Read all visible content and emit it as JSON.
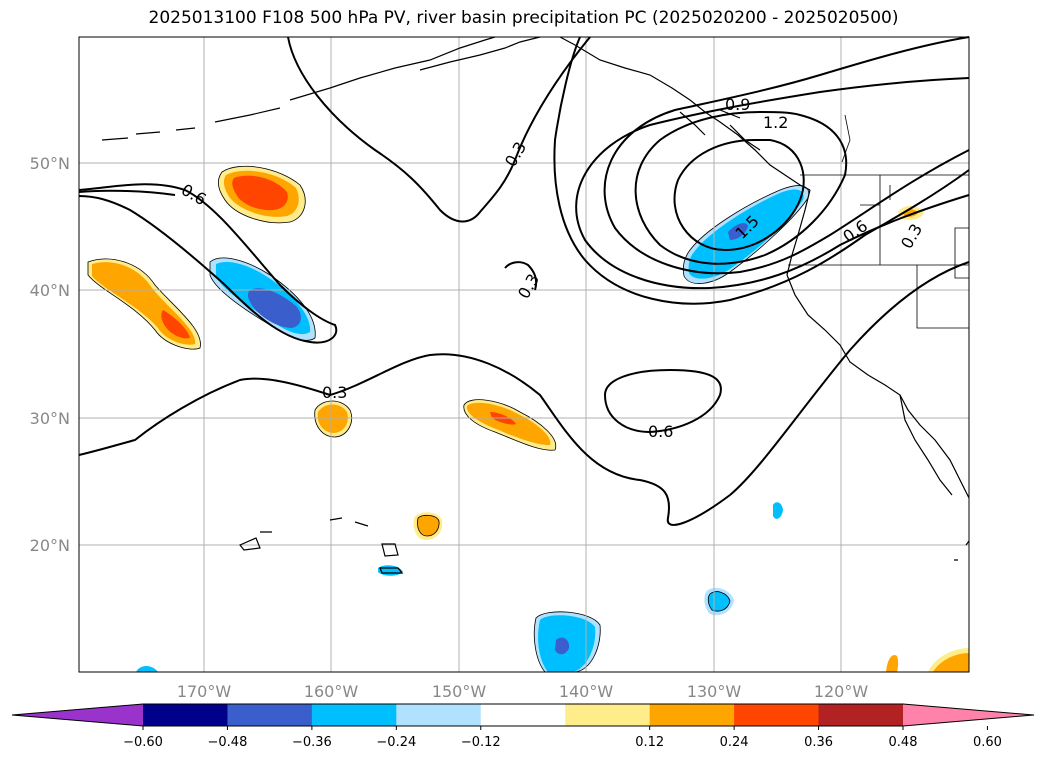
{
  "title": "2025013100 F108 500 hPa PV, river basin precipitation PC (2025020200 - 2025020500)",
  "map": {
    "lat_ticks": [
      {
        "lat": 50,
        "label": "50°N"
      },
      {
        "lat": 40,
        "label": "40°N"
      },
      {
        "lat": 30,
        "label": "30°N"
      },
      {
        "lat": 20,
        "label": "20°N"
      }
    ],
    "lon_ticks": [
      {
        "lon": -170,
        "label": "170°W"
      },
      {
        "lon": -160,
        "label": "160°W"
      },
      {
        "lon": -150,
        "label": "150°W"
      },
      {
        "lon": -140,
        "label": "140°W"
      },
      {
        "lon": -130,
        "label": "130°W"
      },
      {
        "lon": -120,
        "label": "120°W"
      }
    ],
    "extent": {
      "lon_min": -180,
      "lon_max": -110,
      "lat_min": 10,
      "lat_max": 60
    },
    "contour_labels": [
      "0.6",
      "0.3",
      "0.3",
      "0.3",
      "0.6",
      "0.9",
      "1.2",
      "1.5",
      "0.6",
      "0.3"
    ],
    "colors": {
      "neg_060": "#9933cc",
      "neg_048": "#00008b",
      "neg_036": "#3a5fcd",
      "neg_024": "#00bfff",
      "neg_012": "#b0e2ff",
      "zero": "#ffffff",
      "pos_012": "#ffec8b",
      "pos_024": "#ffa500",
      "pos_036": "#ff4500",
      "pos_048": "#b22222",
      "pos_060": "#ff82ab"
    }
  },
  "colorbar": {
    "colors": [
      "#9933cc",
      "#00008b",
      "#3a5fcd",
      "#00bfff",
      "#b0e2ff",
      "#ffffff",
      "#ffec8b",
      "#ffa500",
      "#ff4500",
      "#b22222",
      "#ff82ab"
    ],
    "labels": [
      "−0.60",
      "−0.48",
      "−0.36",
      "−0.24",
      "−0.12",
      "0.12",
      "0.24",
      "0.36",
      "0.48",
      "0.60"
    ]
  }
}
